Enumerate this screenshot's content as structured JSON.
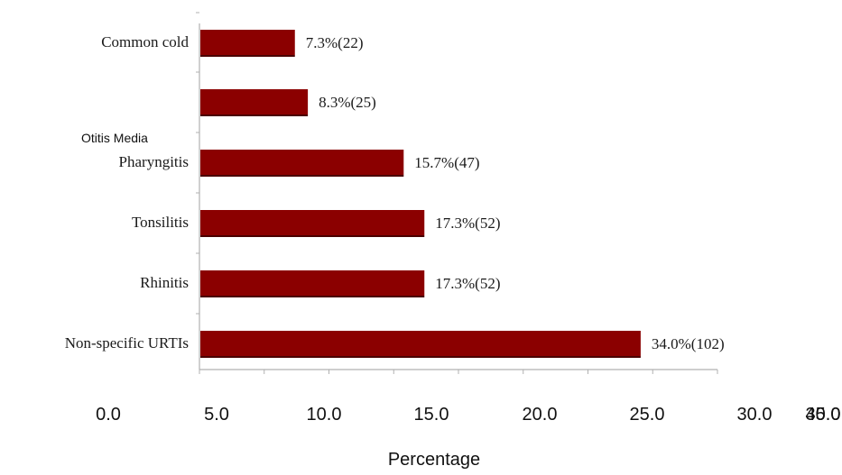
{
  "chart_data": {
    "type": "bar",
    "orientation": "horizontal",
    "categories": [
      "Common cold",
      "",
      "Pharyngitis",
      "Tonsilitis",
      "Rhinitis",
      "Non-specific URTIs"
    ],
    "values": [
      7.3,
      8.3,
      15.7,
      17.3,
      17.3,
      34.0
    ],
    "data_labels": [
      "7.3%(22)",
      "8.3%(25)",
      "15.7%(47)",
      "17.3%(52)",
      "17.3%(52)",
      "34.0%(102)"
    ],
    "annotations": [
      "Otitis Media"
    ],
    "xlabel": "Percentage",
    "xticks": [
      "0.0",
      "5.0",
      "10.0",
      "15.0",
      "20.0",
      "25.0",
      "30.0",
      "35.0",
      "40.0"
    ],
    "xlim": [
      0,
      40
    ],
    "grid": false,
    "colors": {
      "bar": "#8b0000",
      "axis": "#b0b0b0"
    }
  }
}
